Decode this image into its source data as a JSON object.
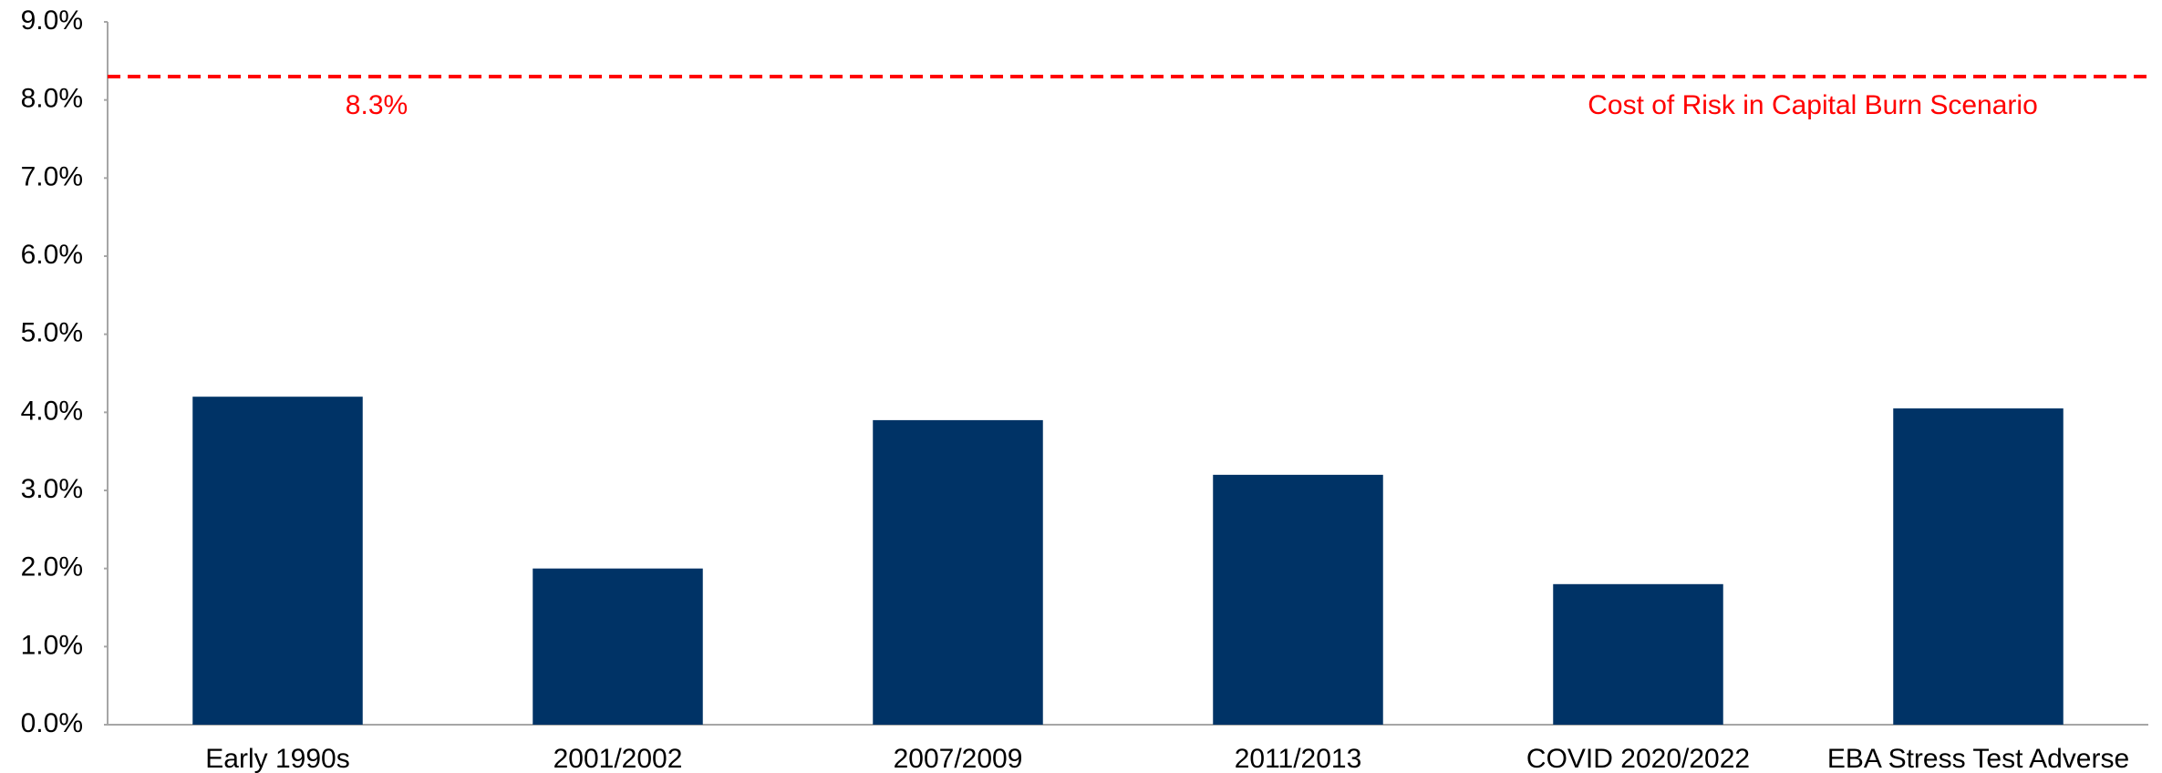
{
  "chart_data": {
    "type": "bar",
    "categories": [
      "Early 1990s",
      "2001/2002",
      "2007/2009",
      "2011/2013",
      "COVID 2020/2022",
      "EBA Stress Test Adverse"
    ],
    "values": [
      4.2,
      2.0,
      3.9,
      3.2,
      1.8,
      4.05
    ],
    "color": "#003366",
    "ylim": [
      0,
      9
    ],
    "yticks": [
      {
        "value": 0,
        "label": "0.0%"
      },
      {
        "value": 1,
        "label": "1.0%"
      },
      {
        "value": 2,
        "label": "2.0%"
      },
      {
        "value": 3,
        "label": "3.0%"
      },
      {
        "value": 4,
        "label": "4.0%"
      },
      {
        "value": 5,
        "label": "5.0%"
      },
      {
        "value": 6,
        "label": "6.0%"
      },
      {
        "value": 7,
        "label": "7.0%"
      },
      {
        "value": 8,
        "label": "8.0%"
      },
      {
        "value": 9,
        "label": "9.0%"
      }
    ],
    "grid": false,
    "reference_line": {
      "value": 8.3,
      "label": "8.3%",
      "name": "Cost of Risk in Capital Burn Scenario",
      "color": "#ff0000"
    }
  }
}
